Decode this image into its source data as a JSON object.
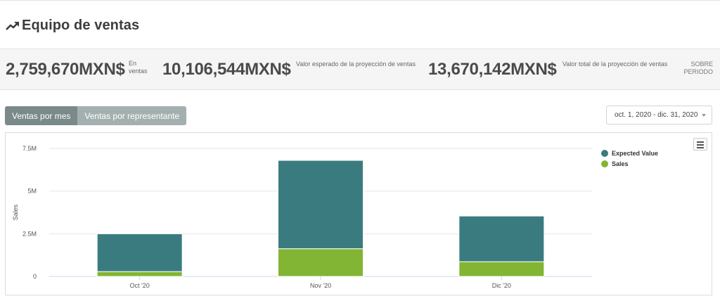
{
  "header": {
    "title": "Equipo de ventas",
    "icon": "trending-up-icon"
  },
  "stats": [
    {
      "value": "2,759,670MXN$",
      "label_lines": [
        "En",
        "ventas"
      ]
    },
    {
      "value": "10,106,544MXN$",
      "label_lines": [
        "Valor esperado de la proyección de ventas"
      ]
    },
    {
      "value": "13,670,142MXN$",
      "label_lines": [
        "Valor total de la proyección de ventas"
      ]
    }
  ],
  "period_label": {
    "line1": "SOBRE",
    "line2": "PERIODO"
  },
  "tabs": [
    {
      "label": "Ventas por mes",
      "active": true
    },
    {
      "label": "Ventas por representante",
      "active": false
    }
  ],
  "date_range": {
    "value": "oct. 1, 2020 - dic. 31, 2020"
  },
  "chart_data": {
    "type": "bar",
    "stacked": true,
    "categories": [
      "Oct '20",
      "Nov '20",
      "Dic '20"
    ],
    "series": [
      {
        "name": "Sales",
        "color": "#82b534",
        "values": [
          280000,
          1620000,
          860000
        ]
      },
      {
        "name": "Expected Value",
        "color": "#3a7b80",
        "values": [
          2220000,
          5180000,
          2680000
        ]
      }
    ],
    "ylabel": "Sales",
    "xlabel": "",
    "ylim": [
      0,
      7500000
    ],
    "yticks": [
      {
        "value": 0,
        "label": "0"
      },
      {
        "value": 2500000,
        "label": "2.5M"
      },
      {
        "value": 5000000,
        "label": "5M"
      },
      {
        "value": 7500000,
        "label": "7.5M"
      }
    ],
    "legend": [
      {
        "name": "Expected Value",
        "color": "#3a7b80"
      },
      {
        "name": "Sales",
        "color": "#82b534"
      }
    ],
    "legend_position": "top-right",
    "grid": true
  }
}
